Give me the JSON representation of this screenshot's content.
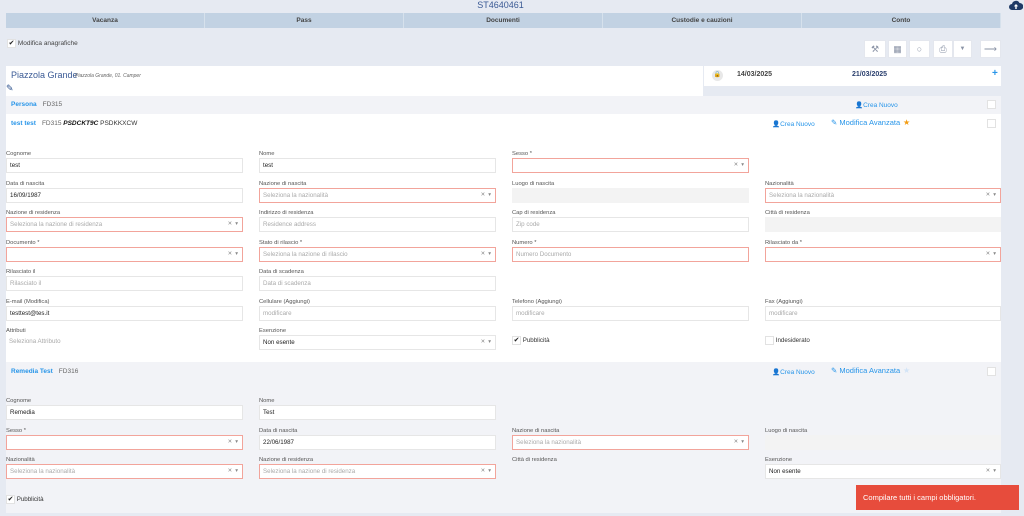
{
  "header": {
    "title": "ST4640461",
    "upload_icon": "cloud-upload-icon"
  },
  "tabs": [
    "Vacanza",
    "Pass",
    "Documenti",
    "Custodie e cauzioni",
    "Conto"
  ],
  "modifica_anagrafiche": {
    "label": "Modifica anagrafiche",
    "checked": true
  },
  "toolbar": {
    "icons": [
      "magic-wand-icon",
      "qr-code-icon",
      "circle-icon",
      "print-icon",
      "caret-down-icon",
      "arrow-right-icon"
    ]
  },
  "pitch": {
    "name": "Piazzola Grande",
    "subtitle": "Piazzola Grande, 01. Camper"
  },
  "dates": {
    "start": "14/03/2025",
    "end": "21/03/2025",
    "add": "+"
  },
  "persona": {
    "label": "Persona",
    "code": "FD315",
    "create": "Crea Nuovo"
  },
  "colors": {
    "accent": "#2795e9",
    "error_border": "#f2a49b",
    "toast": "#e74c3c",
    "star_active": "#f39c12"
  },
  "guests": [
    {
      "name": "test test",
      "code": "FD315",
      "doc_bold": "PSDCKT9C",
      "doc": "PSDKKXCW",
      "create": "Crea Nuovo",
      "edit": "Modifica Avanzata",
      "starred": true,
      "fields": [
        {
          "label": "Cognome",
          "kind": "input",
          "value": "test"
        },
        {
          "label": "Nome",
          "kind": "input",
          "value": "test"
        },
        {
          "label": "Sesso *",
          "kind": "select",
          "err": true,
          "value": ""
        },
        {
          "kind": "empty"
        },
        {
          "label": "Data di nascita",
          "kind": "input",
          "value": "16/09/1987"
        },
        {
          "label": "Nazione di nascita",
          "kind": "select",
          "err": true,
          "placeholder": "Seleziona la nazionalità"
        },
        {
          "label": "Luogo di nascita",
          "kind": "disabled"
        },
        {
          "label": "Nazionalità",
          "kind": "select",
          "err": true,
          "placeholder": "Seleziona la nazionalità"
        },
        {
          "label": "Nazione di residenza",
          "kind": "select",
          "err": true,
          "placeholder": "Seleziona la nazione di residenza"
        },
        {
          "label": "Indirizzo di residenza",
          "kind": "input",
          "placeholder": "Residence address"
        },
        {
          "label": "Cap di residenza",
          "kind": "input",
          "placeholder": "Zip code"
        },
        {
          "label": "Città di residenza",
          "kind": "disabled"
        },
        {
          "label": "Documento *",
          "kind": "select",
          "err": true,
          "value": ""
        },
        {
          "label": "Stato di rilascio *",
          "kind": "select",
          "err": true,
          "placeholder": "Seleziona la nazione di rilascio"
        },
        {
          "label": "Numero *",
          "kind": "input",
          "err": true,
          "placeholder": "Numero Documento"
        },
        {
          "label": "Rilasciato da *",
          "kind": "select",
          "err": true,
          "value": ""
        },
        {
          "label": "Rilasciato il",
          "kind": "input",
          "placeholder": "Rilasciato il"
        },
        {
          "label": "Data di scadenza",
          "kind": "input",
          "placeholder": "Data di scadenza"
        },
        {
          "kind": "empty"
        },
        {
          "kind": "empty"
        },
        {
          "label": "E-mail (Modifica)",
          "kind": "input",
          "value": "testtest@tes.it"
        },
        {
          "label": "Cellulare (Aggiungi)",
          "kind": "input",
          "placeholder": "modificare"
        },
        {
          "label": "Telefono (Aggiungi)",
          "kind": "input",
          "placeholder": "modificare"
        },
        {
          "label": "Fax (Aggiungi)",
          "kind": "input",
          "placeholder": "modificare"
        },
        {
          "label": "Attributi",
          "kind": "plain",
          "placeholder": "Seleziona Attributo"
        },
        {
          "label": "Esenzione",
          "kind": "select",
          "value": "Non esente"
        },
        {
          "kind": "checkbox",
          "text": "Pubblicità",
          "checked": true
        },
        {
          "kind": "checkbox",
          "text": "Indesiderato",
          "checked": false
        }
      ]
    },
    {
      "name": "Remedia Test",
      "code": "FD316",
      "create": "Crea Nuovo",
      "edit": "Modifica Avanzata",
      "starred": false,
      "fields": [
        {
          "label": "Cognome",
          "kind": "input",
          "value": "Remedia"
        },
        {
          "label": "Nome",
          "kind": "input",
          "value": "Test"
        },
        {
          "kind": "empty"
        },
        {
          "kind": "empty"
        },
        {
          "label": "Sesso *",
          "kind": "select",
          "err": true,
          "value": ""
        },
        {
          "label": "Data di nascita",
          "kind": "input",
          "value": "22/06/1987"
        },
        {
          "label": "Nazione di nascita",
          "kind": "select",
          "err": true,
          "placeholder": "Seleziona la nazionalità"
        },
        {
          "label": "Luogo di nascita",
          "kind": "disabled"
        },
        {
          "label": "Nazionalità",
          "kind": "select",
          "err": true,
          "placeholder": "Seleziona la nazionalità"
        },
        {
          "label": "Nazione di residenza",
          "kind": "select",
          "err": true,
          "placeholder": "Seleziona la nazione di residenza"
        },
        {
          "label": "Città di residenza",
          "kind": "none"
        },
        {
          "label": "Esenzione",
          "kind": "select",
          "value": "Non esente"
        },
        {
          "kind": "checkbox",
          "text": "Pubblicità",
          "checked": true
        }
      ]
    }
  ],
  "toast": "Compilare tutti i campi obbligatori."
}
